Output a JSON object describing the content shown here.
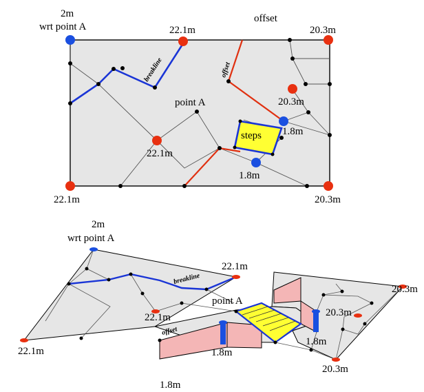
{
  "colors": {
    "plan_fill": "#e6e6e6",
    "edge": "#000000",
    "thin_line": "#555555",
    "breakline": "#1a35d6",
    "offset": "#e03010",
    "blue_node": "#1a4fe0",
    "red_node": "#e83010",
    "steps_fill": "#ffff33",
    "wall_pink": "#f4b6b6"
  },
  "plan": {
    "labels": {
      "top_left_1": "2m",
      "top_left_2": "wrt point A",
      "top_mid": "22.1m",
      "top_offset": "offset",
      "top_right": "20.3m",
      "inner_right": "20.3m",
      "point_a": "point A",
      "steps": "steps",
      "steps_right": "1.8m",
      "mid_left": "22.1m",
      "steps_bottom": "1.8m",
      "bottom_left": "22.1m",
      "bottom_right": "20.3m",
      "breakline_tag": "breakline",
      "offset_tag": "offset"
    }
  },
  "iso": {
    "labels": {
      "top_1": "2m",
      "top_2": "wrt point A",
      "top_mid": "22.1m",
      "far_right": "20.3m",
      "inner_right": "20.3m",
      "point_a": "point A",
      "mid_left": "22.1m",
      "left": "22.1m",
      "pillar_left": "1.8m",
      "pillar_right": "1.8m",
      "bottom_right": "20.3m",
      "bottom": "1.8m",
      "breakline_tag": "breakline",
      "offset_tag": "offset"
    }
  }
}
